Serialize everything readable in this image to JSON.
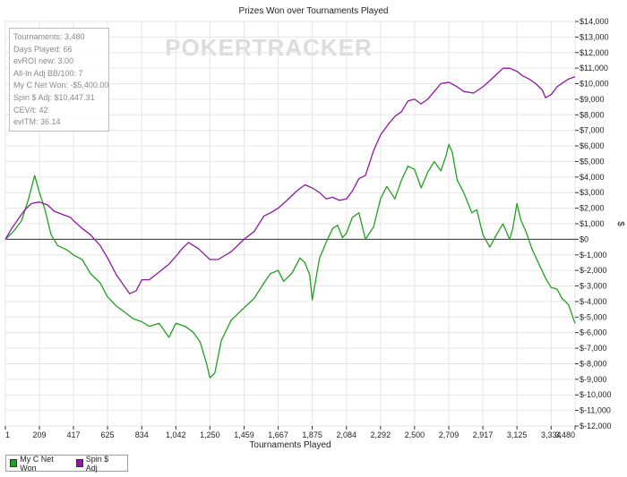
{
  "chart_data": {
    "type": "line",
    "title": "Prizes Won over Tournaments Played",
    "xlabel": "Tournaments Played",
    "ylabel": "$",
    "watermark": "POKERTRACKER",
    "xlim": [
      1,
      3480
    ],
    "ylim": [
      -12000,
      14000
    ],
    "x_ticks": [
      1,
      209,
      417,
      625,
      834,
      1042,
      1250,
      1459,
      1667,
      1875,
      2084,
      2292,
      2500,
      2709,
      2917,
      3125,
      3334,
      3480
    ],
    "x_tick_labels": [
      "1",
      "209",
      "417",
      "625",
      "834",
      "1,042",
      "1,250",
      "1,459",
      "1,667",
      "1,875",
      "2,084",
      "2,292",
      "2,500",
      "2,709",
      "2,917",
      "3,125",
      "3,334",
      "3,480"
    ],
    "y_ticks": [
      14000,
      13000,
      12000,
      11000,
      10000,
      9000,
      8000,
      7000,
      6000,
      5000,
      4000,
      3000,
      2000,
      1000,
      0,
      -1000,
      -2000,
      -3000,
      -4000,
      -5000,
      -6000,
      -7000,
      -8000,
      -9000,
      -10000,
      -11000,
      -12000
    ],
    "y_tick_labels": [
      "$14,000",
      "$13,000",
      "$12,000",
      "$11,000",
      "$10,000",
      "$9,000",
      "$8,000",
      "$7,000",
      "$6,000",
      "$5,000",
      "$4,000",
      "$3,000",
      "$2,000",
      "$1,000",
      "$0",
      "$-1,000",
      "$-2,000",
      "$-3,000",
      "$-4,000",
      "$-5,000",
      "$-6,000",
      "$-7,000",
      "$-8,000",
      "$-9,000",
      "$-10,000",
      "$-11,000",
      "$-12,000"
    ],
    "grid": true,
    "legend_position": "bottom-left",
    "stats": [
      "Tournaments: 3,480",
      "Days Played: 66",
      "evROI new: 3.00",
      "All-In Adj BB/100: 7",
      "My C Net Won: -$5,400.00",
      "Spin $ Adj: $10,447.31",
      "CEV/t: 42",
      "evITM: 36.14"
    ],
    "series": [
      {
        "name": "My C Net Won",
        "color": "#22a022",
        "x": [
          1,
          50,
          100,
          140,
          180,
          209,
          240,
          280,
          320,
          380,
          417,
          470,
          520,
          580,
          625,
          680,
          720,
          780,
          834,
          880,
          940,
          1000,
          1042,
          1100,
          1150,
          1190,
          1230,
          1250,
          1280,
          1320,
          1380,
          1459,
          1520,
          1580,
          1620,
          1667,
          1700,
          1750,
          1800,
          1830,
          1860,
          1875,
          1920,
          1960,
          2000,
          2030,
          2060,
          2084,
          2120,
          2160,
          2200,
          2250,
          2292,
          2330,
          2380,
          2420,
          2460,
          2500,
          2540,
          2580,
          2620,
          2660,
          2690,
          2709,
          2730,
          2760,
          2800,
          2850,
          2880,
          2917,
          2960,
          3000,
          3040,
          3080,
          3100,
          3125,
          3150,
          3180,
          3220,
          3260,
          3300,
          3334,
          3370,
          3400,
          3440,
          3480
        ],
        "y": [
          0,
          500,
          1200,
          2500,
          4100,
          3000,
          2000,
          300,
          -400,
          -700,
          -1000,
          -1300,
          -2200,
          -2800,
          -3700,
          -4300,
          -4600,
          -5100,
          -5300,
          -5600,
          -5400,
          -6300,
          -5400,
          -5600,
          -6000,
          -6600,
          -8000,
          -8900,
          -8600,
          -6500,
          -5200,
          -4400,
          -3800,
          -2800,
          -2200,
          -2000,
          -2700,
          -2200,
          -1200,
          -1500,
          -2300,
          -3900,
          -1200,
          -200,
          700,
          900,
          100,
          400,
          1400,
          1700,
          0,
          800,
          2600,
          3400,
          2600,
          3800,
          4700,
          4500,
          3300,
          4300,
          5000,
          4400,
          5300,
          6100,
          5600,
          3800,
          3000,
          1700,
          1900,
          300,
          -500,
          300,
          1000,
          0,
          700,
          2300,
          1200,
          500,
          -700,
          -1600,
          -2500,
          -3100,
          -3200,
          -3800,
          -4200,
          -5400
        ]
      },
      {
        "name": "Spin $ Adj",
        "color": "#8a1aa0",
        "x": [
          1,
          40,
          80,
          120,
          160,
          209,
          260,
          300,
          350,
          400,
          417,
          470,
          520,
          580,
          625,
          680,
          720,
          760,
          800,
          834,
          880,
          940,
          1000,
          1042,
          1080,
          1120,
          1180,
          1250,
          1300,
          1380,
          1459,
          1520,
          1580,
          1620,
          1667,
          1720,
          1780,
          1830,
          1875,
          1920,
          1960,
          2000,
          2040,
          2084,
          2120,
          2160,
          2200,
          2250,
          2292,
          2340,
          2380,
          2420,
          2460,
          2500,
          2540,
          2580,
          2620,
          2660,
          2709,
          2760,
          2800,
          2860,
          2917,
          2960,
          3000,
          3040,
          3080,
          3125,
          3160,
          3200,
          3240,
          3280,
          3300,
          3334,
          3370,
          3410,
          3440,
          3480
        ],
        "y": [
          0,
          700,
          1300,
          1900,
          2300,
          2400,
          2200,
          1800,
          1600,
          1400,
          1200,
          700,
          300,
          -400,
          -1200,
          -2300,
          -2900,
          -3500,
          -3300,
          -2600,
          -2600,
          -2100,
          -1600,
          -1100,
          -600,
          -200,
          -600,
          -1300,
          -1300,
          -800,
          0,
          500,
          1500,
          1700,
          2000,
          2500,
          3100,
          3500,
          3300,
          3000,
          2600,
          2700,
          2500,
          2600,
          3100,
          3900,
          4100,
          5700,
          6700,
          7400,
          7900,
          8200,
          8900,
          9000,
          8700,
          9000,
          9500,
          10000,
          10100,
          9800,
          9500,
          9400,
          9800,
          10200,
          10600,
          11000,
          11000,
          10800,
          10500,
          10300,
          10000,
          9600,
          9100,
          9300,
          9800,
          10100,
          10300,
          10447
        ]
      }
    ]
  }
}
